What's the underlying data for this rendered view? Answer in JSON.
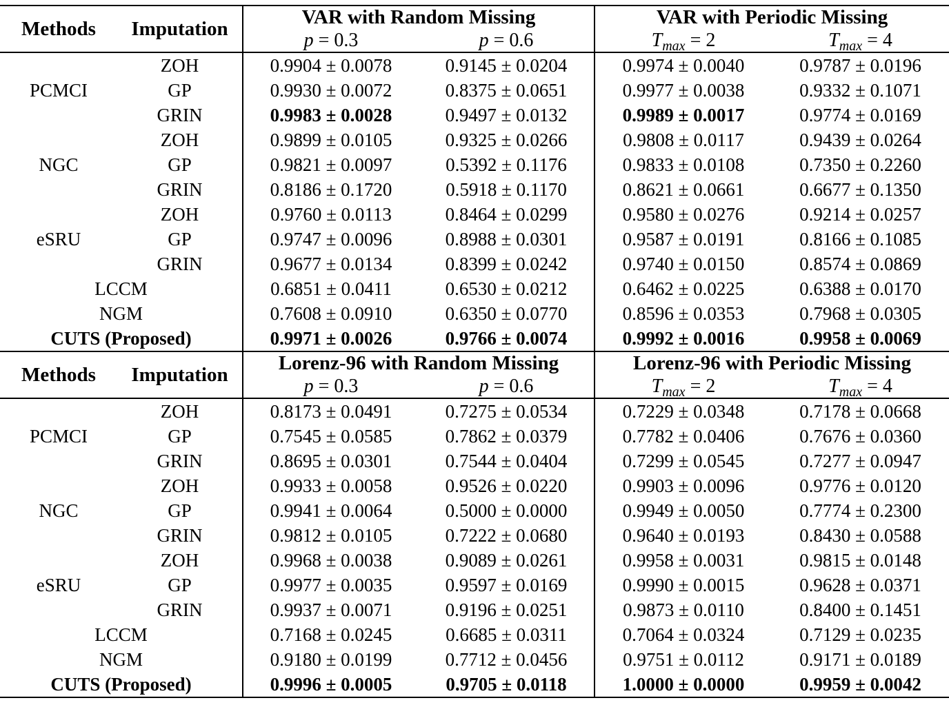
{
  "page": {
    "background": "#ffffff",
    "text_color": "#000000",
    "rule_color": "#000000"
  },
  "header_labels": {
    "methods": "Methods",
    "imputation": "Imputation"
  },
  "chart_data": {
    "type": "table",
    "note": "Method comparison table with mean ± std scores",
    "sections": 2
  },
  "sections": [
    {
      "random_title": "VAR with Random Missing",
      "periodic_title": "VAR with Periodic Missing",
      "subcols": [
        {
          "var": "p",
          "sub": "",
          "rest": " = 0.3"
        },
        {
          "var": "p",
          "sub": "",
          "rest": " = 0.6"
        },
        {
          "var": "T",
          "sub": "max",
          "rest": " = 2"
        },
        {
          "var": "T",
          "sub": "max",
          "rest": " = 4"
        }
      ],
      "rows": [
        {
          "method": "PCMCI",
          "rowspan": 3,
          "imputation": "ZOH",
          "values": [
            "0.9904 ± 0.0078",
            "0.9145 ± 0.0204",
            "0.9974 ± 0.0040",
            "0.9787 ± 0.0196"
          ],
          "bold": [
            0,
            0,
            0,
            0
          ]
        },
        {
          "imputation": "GP",
          "values": [
            "0.9930 ± 0.0072",
            "0.8375 ± 0.0651",
            "0.9977 ± 0.0038",
            "0.9332 ± 0.1071"
          ],
          "bold": [
            0,
            0,
            0,
            0
          ]
        },
        {
          "imputation": "GRIN",
          "values": [
            "0.9983 ± 0.0028",
            "0.9497 ± 0.0132",
            "0.9989 ± 0.0017",
            "0.9774 ± 0.0169"
          ],
          "bold": [
            1,
            0,
            1,
            0
          ]
        },
        {
          "method": "NGC",
          "rowspan": 3,
          "imputation": "ZOH",
          "values": [
            "0.9899 ± 0.0105",
            "0.9325 ± 0.0266",
            "0.9808 ± 0.0117",
            "0.9439 ± 0.0264"
          ],
          "bold": [
            0,
            0,
            0,
            0
          ]
        },
        {
          "imputation": "GP",
          "values": [
            "0.9821 ± 0.0097",
            "0.5392 ± 0.1176",
            "0.9833 ± 0.0108",
            "0.7350 ± 0.2260"
          ],
          "bold": [
            0,
            0,
            0,
            0
          ]
        },
        {
          "imputation": "GRIN",
          "values": [
            "0.8186 ± 0.1720",
            "0.5918 ± 0.1170",
            "0.8621 ± 0.0661",
            "0.6677 ± 0.1350"
          ],
          "bold": [
            0,
            0,
            0,
            0
          ]
        },
        {
          "method": "eSRU",
          "rowspan": 3,
          "imputation": "ZOH",
          "values": [
            "0.9760 ± 0.0113",
            "0.8464 ± 0.0299",
            "0.9580 ± 0.0276",
            "0.9214 ± 0.0257"
          ],
          "bold": [
            0,
            0,
            0,
            0
          ]
        },
        {
          "imputation": "GP",
          "values": [
            "0.9747 ± 0.0096",
            "0.8988 ± 0.0301",
            "0.9587 ± 0.0191",
            "0.8166 ± 0.1085"
          ],
          "bold": [
            0,
            0,
            0,
            0
          ]
        },
        {
          "imputation": "GRIN",
          "values": [
            "0.9677 ± 0.0134",
            "0.8399 ± 0.0242",
            "0.9740 ± 0.0150",
            "0.8574 ± 0.0869"
          ],
          "bold": [
            0,
            0,
            0,
            0
          ]
        },
        {
          "span_label": "LCCM",
          "label_bold": false,
          "values": [
            "0.6851 ± 0.0411",
            "0.6530 ± 0.0212",
            "0.6462 ± 0.0225",
            "0.6388 ± 0.0170"
          ],
          "bold": [
            0,
            0,
            0,
            0
          ]
        },
        {
          "span_label": "NGM",
          "label_bold": false,
          "values": [
            "0.7608 ± 0.0910",
            "0.6350 ± 0.0770",
            "0.8596 ± 0.0353",
            "0.7968 ± 0.0305"
          ],
          "bold": [
            0,
            0,
            0,
            0
          ]
        },
        {
          "span_label": "CUTS (Proposed)",
          "label_bold": true,
          "values": [
            "0.9971 ± 0.0026",
            "0.9766 ± 0.0074",
            "0.9992 ± 0.0016",
            "0.9958 ± 0.0069"
          ],
          "bold": [
            1,
            1,
            1,
            1
          ]
        }
      ]
    },
    {
      "random_title": "Lorenz-96 with Random Missing",
      "periodic_title": "Lorenz-96 with Periodic Missing",
      "subcols": [
        {
          "var": "p",
          "sub": "",
          "rest": " = 0.3"
        },
        {
          "var": "p",
          "sub": "",
          "rest": " = 0.6"
        },
        {
          "var": "T",
          "sub": "max",
          "rest": " = 2"
        },
        {
          "var": "T",
          "sub": "max",
          "rest": " = 4"
        }
      ],
      "rows": [
        {
          "method": "PCMCI",
          "rowspan": 3,
          "imputation": "ZOH",
          "values": [
            "0.8173 ± 0.0491",
            "0.7275 ± 0.0534",
            "0.7229 ± 0.0348",
            "0.7178 ± 0.0668"
          ],
          "bold": [
            0,
            0,
            0,
            0
          ]
        },
        {
          "imputation": "GP",
          "values": [
            "0.7545 ± 0.0585",
            "0.7862 ± 0.0379",
            "0.7782 ± 0.0406",
            "0.7676 ± 0.0360"
          ],
          "bold": [
            0,
            0,
            0,
            0
          ]
        },
        {
          "imputation": "GRIN",
          "values": [
            "0.8695 ± 0.0301",
            "0.7544 ± 0.0404",
            "0.7299 ± 0.0545",
            "0.7277 ± 0.0947"
          ],
          "bold": [
            0,
            0,
            0,
            0
          ]
        },
        {
          "method": "NGC",
          "rowspan": 3,
          "imputation": "ZOH",
          "values": [
            "0.9933 ± 0.0058",
            "0.9526 ± 0.0220",
            "0.9903 ± 0.0096",
            "0.9776 ± 0.0120"
          ],
          "bold": [
            0,
            0,
            0,
            0
          ]
        },
        {
          "imputation": "GP",
          "values": [
            "0.9941 ± 0.0064",
            "0.5000 ± 0.0000",
            "0.9949 ± 0.0050",
            "0.7774 ± 0.2300"
          ],
          "bold": [
            0,
            0,
            0,
            0
          ]
        },
        {
          "imputation": "GRIN",
          "values": [
            "0.9812 ± 0.0105",
            "0.7222 ± 0.0680",
            "0.9640 ± 0.0193",
            "0.8430 ± 0.0588"
          ],
          "bold": [
            0,
            0,
            0,
            0
          ]
        },
        {
          "method": "eSRU",
          "rowspan": 3,
          "imputation": "ZOH",
          "values": [
            "0.9968 ± 0.0038",
            "0.9089 ± 0.0261",
            "0.9958 ± 0.0031",
            "0.9815 ± 0.0148"
          ],
          "bold": [
            0,
            0,
            0,
            0
          ]
        },
        {
          "imputation": "GP",
          "values": [
            "0.9977 ± 0.0035",
            "0.9597 ± 0.0169",
            "0.9990 ± 0.0015",
            "0.9628 ± 0.0371"
          ],
          "bold": [
            0,
            0,
            0,
            0
          ]
        },
        {
          "imputation": "GRIN",
          "values": [
            "0.9937 ± 0.0071",
            "0.9196 ± 0.0251",
            "0.9873 ± 0.0110",
            "0.8400 ± 0.1451"
          ],
          "bold": [
            0,
            0,
            0,
            0
          ]
        },
        {
          "span_label": "LCCM",
          "label_bold": false,
          "values": [
            "0.7168 ± 0.0245",
            "0.6685 ± 0.0311",
            "0.7064 ± 0.0324",
            "0.7129 ± 0.0235"
          ],
          "bold": [
            0,
            0,
            0,
            0
          ]
        },
        {
          "span_label": "NGM",
          "label_bold": false,
          "values": [
            "0.9180 ± 0.0199",
            "0.7712 ± 0.0456",
            "0.9751 ± 0.0112",
            "0.9171 ± 0.0189"
          ],
          "bold": [
            0,
            0,
            0,
            0
          ]
        },
        {
          "span_label": "CUTS (Proposed)",
          "label_bold": true,
          "values": [
            "0.9996 ± 0.0005",
            "0.9705 ± 0.0118",
            "1.0000 ± 0.0000",
            "0.9959 ± 0.0042"
          ],
          "bold": [
            1,
            1,
            1,
            1
          ]
        }
      ]
    }
  ]
}
